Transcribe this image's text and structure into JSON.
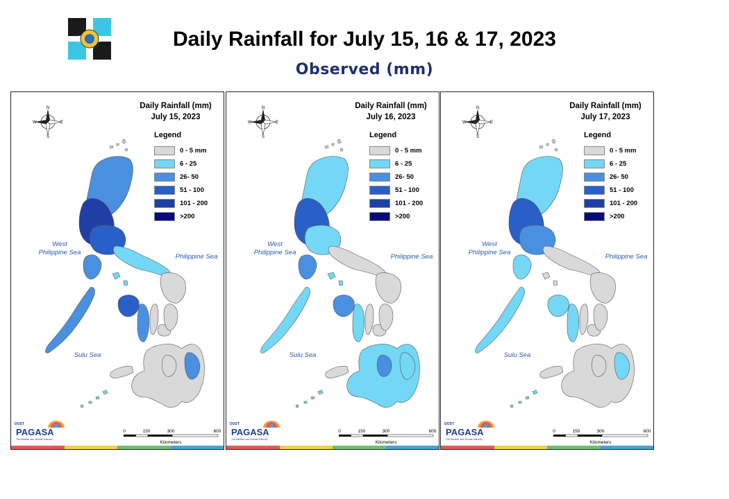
{
  "page": {
    "title": "Daily Rainfall for July 15, 16 & 17, 2023",
    "subtitle": "Observed (mm)"
  },
  "legend": {
    "title": "Legend",
    "classes": [
      {
        "label": "0 - 5 mm",
        "color": "#d9d9d9"
      },
      {
        "label": "6 - 25",
        "color": "#73d7f5"
      },
      {
        "label": "26- 50",
        "color": "#4a90e0"
      },
      {
        "label": "51 - 100",
        "color": "#2a5fc8"
      },
      {
        "label": "101 - 200",
        "color": "#1f3ea6"
      },
      {
        "label": ">200",
        "color": "#0a0a7a"
      }
    ]
  },
  "panels": [
    {
      "title_line1": "Daily Rainfall (mm)",
      "title_line2": "July 15, 2023",
      "level": "high"
    },
    {
      "title_line1": "Daily Rainfall (mm)",
      "title_line2": "July 16, 2023",
      "level": "medium"
    },
    {
      "title_line1": "Daily Rainfall (mm)",
      "title_line2": "July 17, 2023",
      "level": "low"
    }
  ],
  "seas": {
    "west": "West\nPhilippine Sea",
    "east": "Philippine Sea",
    "sulu": "Sulu Sea"
  },
  "compass": {
    "n": "N",
    "s": "S",
    "e": "E",
    "w": "W"
  },
  "scale": {
    "ticks": [
      "0",
      "150",
      "300",
      "600"
    ],
    "unit": "Kilometers"
  },
  "branding": {
    "agency_top": "DOST",
    "agency": "PAGASA",
    "tagline": "The Weather and Climate Authority"
  },
  "colors": {
    "stripe": [
      "#e05a5a",
      "#f2d24a",
      "#6cc070",
      "#49a0dc"
    ]
  }
}
